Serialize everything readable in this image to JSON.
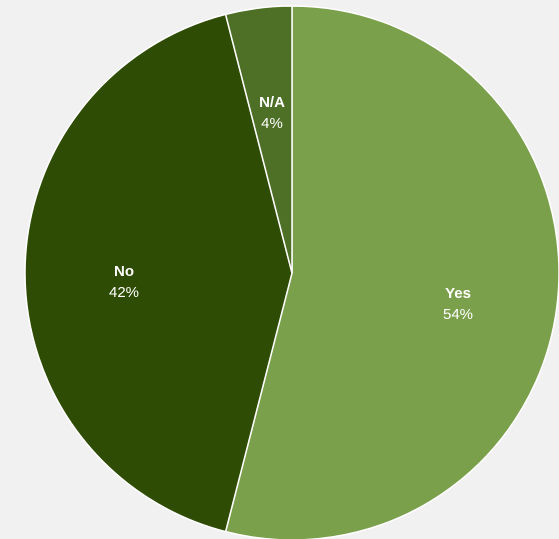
{
  "chart_data": {
    "type": "pie",
    "slices": [
      {
        "label": "Yes",
        "value": 54,
        "value_label": "54%",
        "color": "#7ba04c"
      },
      {
        "label": "No",
        "value": 42,
        "value_label": "42%",
        "color": "#2e4c03"
      },
      {
        "label": "N/A",
        "value": 4,
        "value_label": "4%",
        "color": "#4d7026"
      }
    ],
    "start_angle_deg": 0,
    "direction": "clockwise",
    "legend": "none",
    "data_labels": "inside"
  }
}
